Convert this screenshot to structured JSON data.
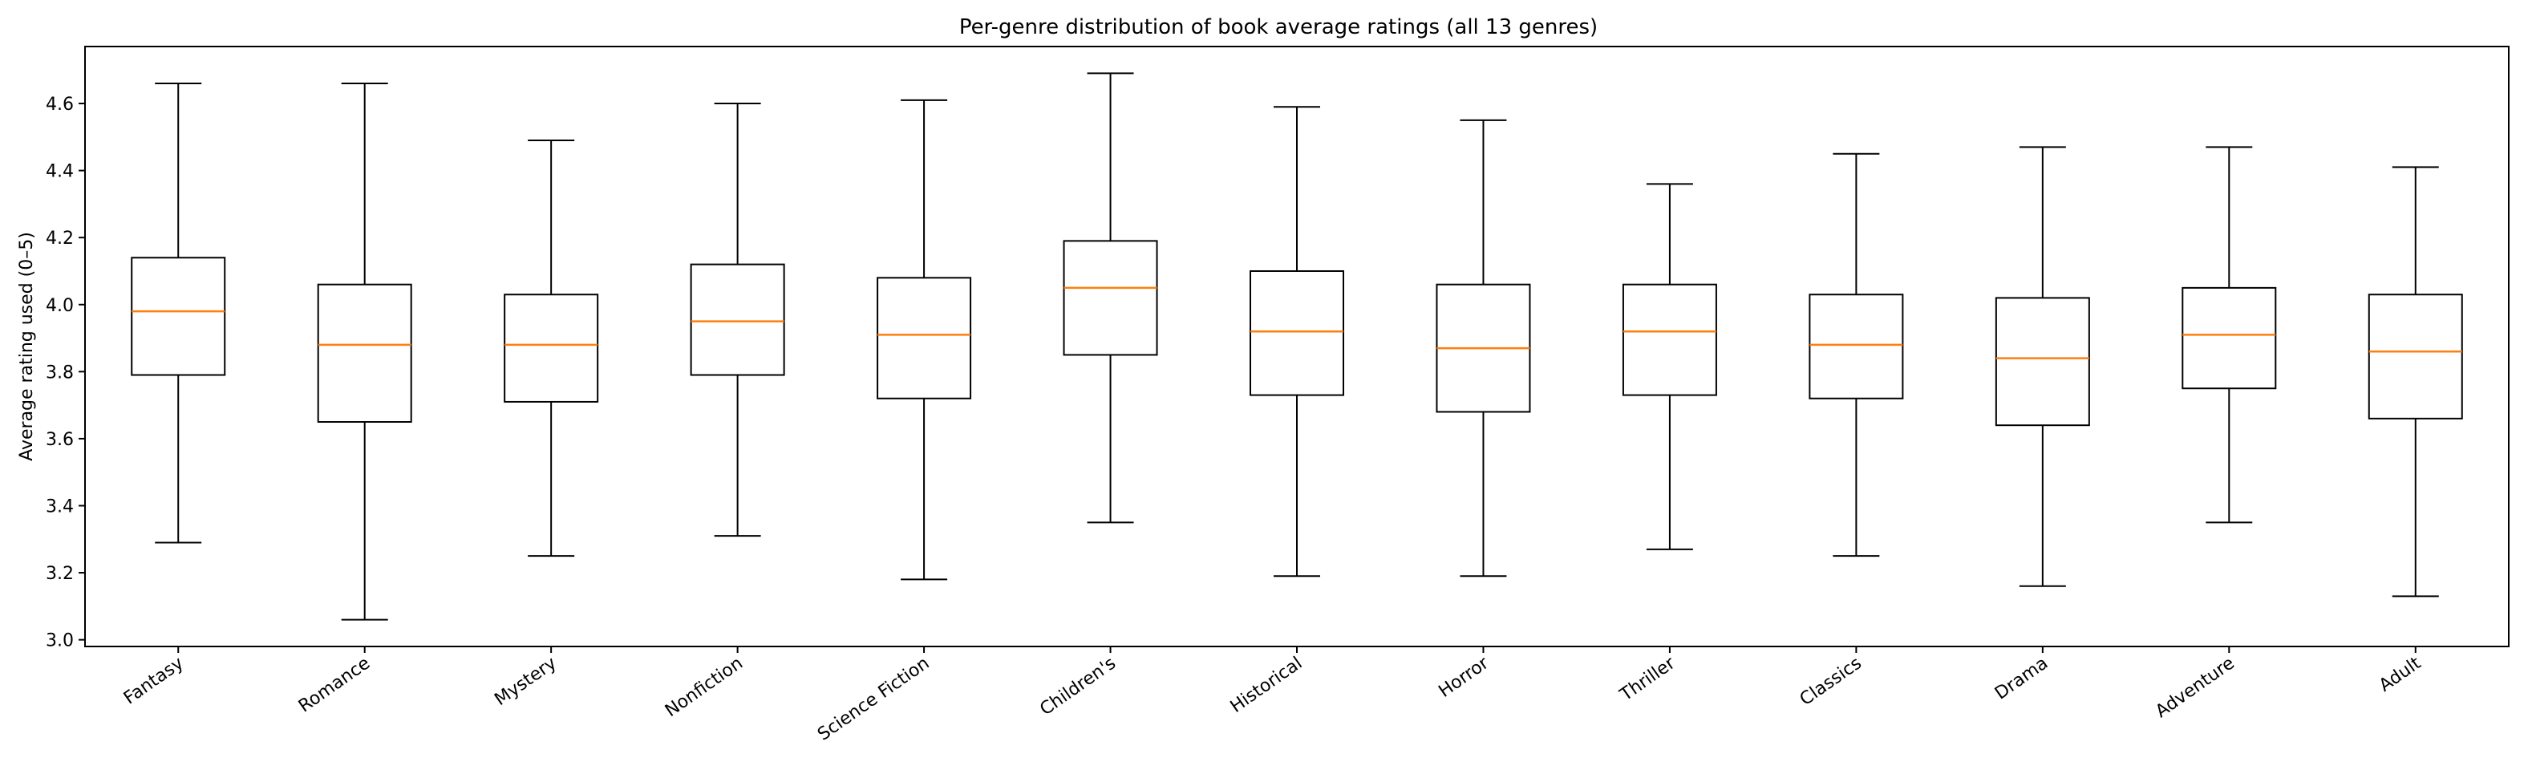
{
  "chart_data": {
    "type": "boxplot",
    "title": "Per-genre distribution of book average ratings (all 13 genres)",
    "xlabel": "",
    "ylabel": "Average rating used (0–5)",
    "ylim": [
      2.98,
      4.77
    ],
    "yticks": [
      "3.0",
      "3.2",
      "3.4",
      "3.6",
      "3.8",
      "4.0",
      "4.2",
      "4.4",
      "4.6"
    ],
    "grid": false,
    "colors": {
      "box": "#000000",
      "median": "#ff7f0e",
      "background": "#ffffff"
    },
    "categories": [
      "Fantasy",
      "Romance",
      "Mystery",
      "Nonfiction",
      "Science Fiction",
      "Children's",
      "Historical",
      "Horror",
      "Thriller",
      "Classics",
      "Drama",
      "Adventure",
      "Adult"
    ],
    "boxes": [
      {
        "whisker_low": 3.29,
        "q1": 3.79,
        "median": 3.98,
        "q3": 4.14,
        "whisker_high": 4.66
      },
      {
        "whisker_low": 3.06,
        "q1": 3.65,
        "median": 3.88,
        "q3": 4.06,
        "whisker_high": 4.66
      },
      {
        "whisker_low": 3.25,
        "q1": 3.71,
        "median": 3.88,
        "q3": 4.03,
        "whisker_high": 4.49
      },
      {
        "whisker_low": 3.31,
        "q1": 3.79,
        "median": 3.95,
        "q3": 4.12,
        "whisker_high": 4.6
      },
      {
        "whisker_low": 3.18,
        "q1": 3.72,
        "median": 3.91,
        "q3": 4.08,
        "whisker_high": 4.61
      },
      {
        "whisker_low": 3.35,
        "q1": 3.85,
        "median": 4.05,
        "q3": 4.19,
        "whisker_high": 4.69
      },
      {
        "whisker_low": 3.19,
        "q1": 3.73,
        "median": 3.92,
        "q3": 4.1,
        "whisker_high": 4.59
      },
      {
        "whisker_low": 3.19,
        "q1": 3.68,
        "median": 3.87,
        "q3": 4.06,
        "whisker_high": 4.55
      },
      {
        "whisker_low": 3.27,
        "q1": 3.73,
        "median": 3.92,
        "q3": 4.06,
        "whisker_high": 4.36
      },
      {
        "whisker_low": 3.25,
        "q1": 3.72,
        "median": 3.88,
        "q3": 4.03,
        "whisker_high": 4.45
      },
      {
        "whisker_low": 3.16,
        "q1": 3.64,
        "median": 3.84,
        "q3": 4.02,
        "whisker_high": 4.47
      },
      {
        "whisker_low": 3.35,
        "q1": 3.75,
        "median": 3.91,
        "q3": 4.05,
        "whisker_high": 4.47
      },
      {
        "whisker_low": 3.13,
        "q1": 3.66,
        "median": 3.86,
        "q3": 4.03,
        "whisker_high": 4.41
      }
    ]
  }
}
